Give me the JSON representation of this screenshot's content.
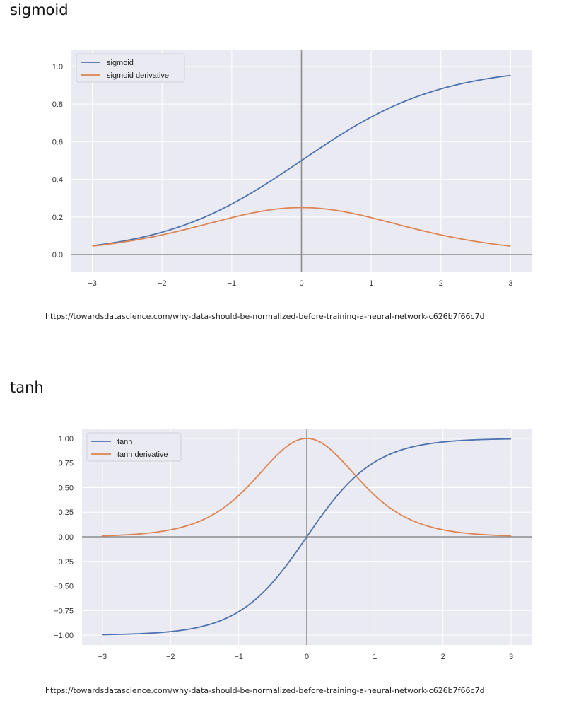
{
  "charts": [
    {
      "title": "sigmoid",
      "caption": "https://towardsdatascience.com/why-data-should-be-normalized-before-training-a-neural-network-c626b7f66c7d"
    },
    {
      "title": "tanh",
      "caption": "https://towardsdatascience.com/why-data-should-be-normalized-before-training-a-neural-network-c626b7f66c7d"
    }
  ],
  "colors": {
    "plot_bg": "#eaeaf2",
    "grid": "#ffffff",
    "axis_line": "#8c8c8c",
    "blue": "#4c72b0",
    "orange": "#dd8452"
  },
  "chart_data": [
    {
      "type": "line",
      "x_range": [
        -3,
        3
      ],
      "xlim": [
        -3.3,
        3.3
      ],
      "ylim": [
        -0.09,
        1.09
      ],
      "xticks": [
        -3,
        -2,
        -1,
        0,
        1,
        2,
        3
      ],
      "xtick_labels": [
        "−3",
        "−2",
        "−1",
        "0",
        "1",
        "2",
        "3"
      ],
      "yticks": [
        0.0,
        0.2,
        0.4,
        0.6,
        0.8,
        1.0
      ],
      "ytick_labels": [
        "0.0",
        "0.2",
        "0.4",
        "0.6",
        "0.8",
        "1.0"
      ],
      "x": [
        -3,
        -2.5,
        -2,
        -1.5,
        -1,
        -0.5,
        0,
        0.5,
        1,
        1.5,
        2,
        2.5,
        3
      ],
      "series": [
        {
          "name": "sigmoid",
          "color": "blue",
          "values": [
            0.047,
            0.076,
            0.119,
            0.182,
            0.269,
            0.378,
            0.5,
            0.622,
            0.731,
            0.818,
            0.881,
            0.924,
            0.953
          ]
        },
        {
          "name": "sigmoid derivative",
          "color": "orange",
          "values": [
            0.045,
            0.07,
            0.105,
            0.149,
            0.197,
            0.235,
            0.25,
            0.235,
            0.197,
            0.149,
            0.105,
            0.07,
            0.045
          ]
        }
      ],
      "legend": "top-left",
      "grid": true
    },
    {
      "type": "line",
      "x_range": [
        -3,
        3
      ],
      "xlim": [
        -3.3,
        3.3
      ],
      "ylim": [
        -1.1,
        1.1
      ],
      "xticks": [
        -3,
        -2,
        -1,
        0,
        1,
        2,
        3
      ],
      "xtick_labels": [
        "−3",
        "−2",
        "−1",
        "0",
        "1",
        "2",
        "3"
      ],
      "yticks": [
        -1.0,
        -0.75,
        -0.5,
        -0.25,
        0.0,
        0.25,
        0.5,
        0.75,
        1.0
      ],
      "ytick_labels": [
        "−1.00",
        "−0.75",
        "−0.50",
        "−0.25",
        "0.00",
        "0.25",
        "0.50",
        "0.75",
        "1.00"
      ],
      "x": [
        -3,
        -2.5,
        -2,
        -1.5,
        -1,
        -0.5,
        0,
        0.5,
        1,
        1.5,
        2,
        2.5,
        3
      ],
      "series": [
        {
          "name": "tanh",
          "color": "blue",
          "values": [
            -0.995,
            -0.987,
            -0.964,
            -0.905,
            -0.762,
            -0.462,
            0,
            0.462,
            0.762,
            0.905,
            0.964,
            0.987,
            0.995
          ]
        },
        {
          "name": "tanh derivative",
          "color": "orange",
          "values": [
            0.01,
            0.027,
            0.071,
            0.181,
            0.42,
            0.786,
            1.0,
            0.786,
            0.42,
            0.181,
            0.071,
            0.027,
            0.01
          ]
        }
      ],
      "legend": "top-left",
      "grid": true
    }
  ]
}
